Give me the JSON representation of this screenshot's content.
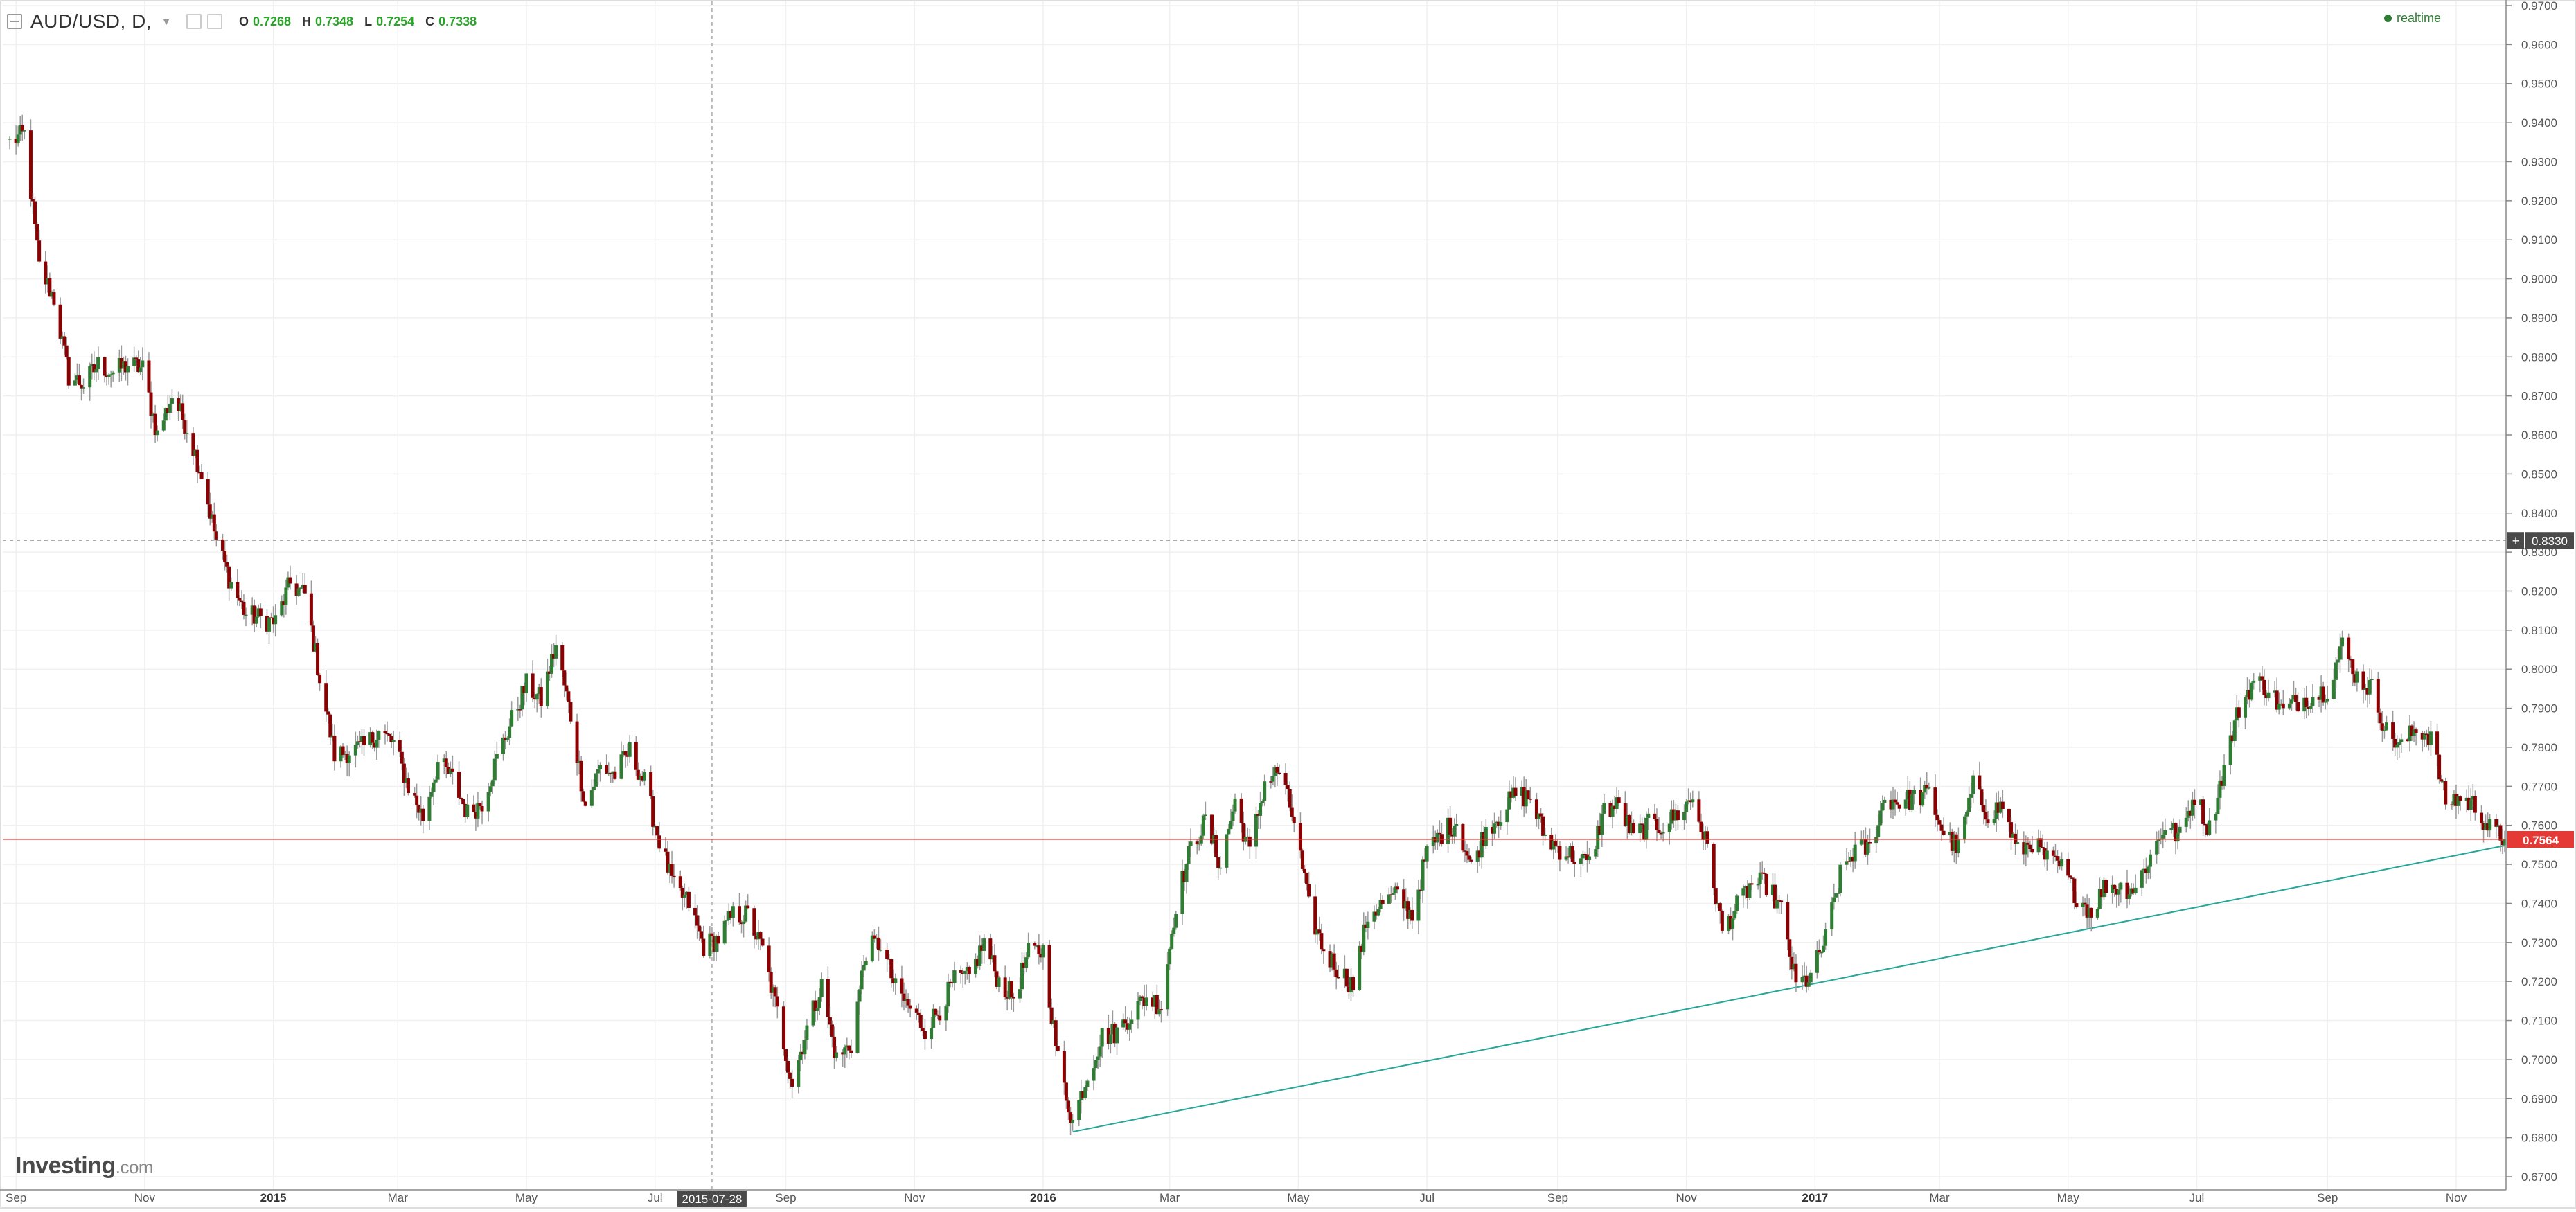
{
  "legend": {
    "symbol": "AUD/USD, D,",
    "o_label": "O",
    "o_value": "0.7268",
    "h_label": "H",
    "h_value": "0.7348",
    "l_label": "L",
    "l_value": "0.7254",
    "c_label": "C",
    "c_value": "0.7338"
  },
  "status": {
    "realtime": "realtime"
  },
  "branding": {
    "name": "Investing",
    "domain": ".com"
  },
  "chart_data": {
    "type": "candlestick",
    "symbol": "AUD/USD",
    "interval": "D",
    "ylim": [
      0.67,
      0.97
    ],
    "y_ticks": [
      "0.6700",
      "0.6800",
      "0.6900",
      "0.7000",
      "0.7100",
      "0.7200",
      "0.7300",
      "0.7400",
      "0.7500",
      "0.7600",
      "0.7700",
      "0.7800",
      "0.7900",
      "0.8000",
      "0.8100",
      "0.8200",
      "0.8300",
      "0.8400",
      "0.8500",
      "0.8600",
      "0.8700",
      "0.8800",
      "0.8900",
      "0.9000",
      "0.9100",
      "0.9200",
      "0.9300",
      "0.9400",
      "0.9500",
      "0.9600",
      "0.9700"
    ],
    "x_labels": [
      {
        "label": "Sep",
        "date": "2014-09-01"
      },
      {
        "label": "Nov",
        "date": "2014-11-01"
      },
      {
        "label": "2015",
        "date": "2015-01-01"
      },
      {
        "label": "Mar",
        "date": "2015-03-01"
      },
      {
        "label": "May",
        "date": "2015-05-01"
      },
      {
        "label": "Jul",
        "date": "2015-07-01"
      },
      {
        "label": "Sep",
        "date": "2015-09-01"
      },
      {
        "label": "Nov",
        "date": "2015-11-01"
      },
      {
        "label": "2016",
        "date": "2016-01-01"
      },
      {
        "label": "Mar",
        "date": "2016-03-01"
      },
      {
        "label": "May",
        "date": "2016-05-01"
      },
      {
        "label": "Jul",
        "date": "2016-07-01"
      },
      {
        "label": "Sep",
        "date": "2016-09-01"
      },
      {
        "label": "Nov",
        "date": "2016-11-01"
      },
      {
        "label": "2017",
        "date": "2017-01-01"
      },
      {
        "label": "Mar",
        "date": "2017-03-01"
      },
      {
        "label": "May",
        "date": "2017-05-01"
      },
      {
        "label": "Jul",
        "date": "2017-07-01"
      },
      {
        "label": "Sep",
        "date": "2017-09-01"
      },
      {
        "label": "Nov",
        "date": "2017-11-01"
      }
    ],
    "x_range": [
      "2014-08-29",
      "2017-11-24"
    ],
    "crosshair": {
      "date": "2015-07-28",
      "date_label": "2015-07-28",
      "price": 0.833,
      "price_label": "0.8330"
    },
    "last_price": {
      "value": 0.7564,
      "label": "0.7564",
      "color": "#e53935"
    },
    "trendline": {
      "start": {
        "date": "2016-01-15",
        "price": 0.6815
      },
      "end": {
        "date": "2017-11-24",
        "price": 0.7548
      },
      "color": "#26a69a"
    },
    "colors": {
      "up": "#2e7d32",
      "down": "#8b0000",
      "wick": "#9a9a9a",
      "grid": "#f0f0f0"
    },
    "grid": true,
    "closes_path": [
      {
        "date": "2014-08-29",
        "close": 0.935
      },
      {
        "date": "2014-09-05",
        "close": 0.937
      },
      {
        "date": "2014-09-12",
        "close": 0.903
      },
      {
        "date": "2014-09-19",
        "close": 0.895
      },
      {
        "date": "2014-09-26",
        "close": 0.875
      },
      {
        "date": "2014-10-03",
        "close": 0.873
      },
      {
        "date": "2014-10-10",
        "close": 0.878
      },
      {
        "date": "2014-10-17",
        "close": 0.876
      },
      {
        "date": "2014-10-24",
        "close": 0.878
      },
      {
        "date": "2014-10-31",
        "close": 0.877
      },
      {
        "date": "2014-11-07",
        "close": 0.86
      },
      {
        "date": "2014-11-14",
        "close": 0.87
      },
      {
        "date": "2014-11-21",
        "close": 0.862
      },
      {
        "date": "2014-11-28",
        "close": 0.85
      },
      {
        "date": "2014-12-05",
        "close": 0.833
      },
      {
        "date": "2014-12-12",
        "close": 0.822
      },
      {
        "date": "2014-12-19",
        "close": 0.814
      },
      {
        "date": "2014-12-26",
        "close": 0.813
      },
      {
        "date": "2015-01-02",
        "close": 0.812
      },
      {
        "date": "2015-01-09",
        "close": 0.822
      },
      {
        "date": "2015-01-16",
        "close": 0.819
      },
      {
        "date": "2015-01-23",
        "close": 0.798
      },
      {
        "date": "2015-01-30",
        "close": 0.778
      },
      {
        "date": "2015-02-06",
        "close": 0.779
      },
      {
        "date": "2015-02-13",
        "close": 0.78
      },
      {
        "date": "2015-02-20",
        "close": 0.784
      },
      {
        "date": "2015-02-27",
        "close": 0.781
      },
      {
        "date": "2015-03-06",
        "close": 0.77
      },
      {
        "date": "2015-03-13",
        "close": 0.762
      },
      {
        "date": "2015-03-20",
        "close": 0.776
      },
      {
        "date": "2015-03-27",
        "close": 0.772
      },
      {
        "date": "2015-04-03",
        "close": 0.763
      },
      {
        "date": "2015-04-10",
        "close": 0.766
      },
      {
        "date": "2015-04-17",
        "close": 0.777
      },
      {
        "date": "2015-04-24",
        "close": 0.787
      },
      {
        "date": "2015-05-01",
        "close": 0.796
      },
      {
        "date": "2015-05-08",
        "close": 0.792
      },
      {
        "date": "2015-05-15",
        "close": 0.806
      },
      {
        "date": "2015-05-22",
        "close": 0.788
      },
      {
        "date": "2015-05-29",
        "close": 0.765
      },
      {
        "date": "2015-06-05",
        "close": 0.775
      },
      {
        "date": "2015-06-12",
        "close": 0.773
      },
      {
        "date": "2015-06-19",
        "close": 0.779
      },
      {
        "date": "2015-06-26",
        "close": 0.771
      },
      {
        "date": "2015-07-03",
        "close": 0.756
      },
      {
        "date": "2015-07-10",
        "close": 0.744
      },
      {
        "date": "2015-07-17",
        "close": 0.74
      },
      {
        "date": "2015-07-24",
        "close": 0.729
      },
      {
        "date": "2015-07-31",
        "close": 0.731
      },
      {
        "date": "2015-08-07",
        "close": 0.737
      },
      {
        "date": "2015-08-14",
        "close": 0.737
      },
      {
        "date": "2015-08-21",
        "close": 0.728
      },
      {
        "date": "2015-08-28",
        "close": 0.712
      },
      {
        "date": "2015-09-04",
        "close": 0.694
      },
      {
        "date": "2015-09-11",
        "close": 0.708
      },
      {
        "date": "2015-09-18",
        "close": 0.719
      },
      {
        "date": "2015-09-25",
        "close": 0.7
      },
      {
        "date": "2015-10-02",
        "close": 0.704
      },
      {
        "date": "2015-10-09",
        "close": 0.728
      },
      {
        "date": "2015-10-16",
        "close": 0.73
      },
      {
        "date": "2015-10-23",
        "close": 0.718
      },
      {
        "date": "2015-10-30",
        "close": 0.713
      },
      {
        "date": "2015-11-06",
        "close": 0.708
      },
      {
        "date": "2015-11-13",
        "close": 0.713
      },
      {
        "date": "2015-11-20",
        "close": 0.72
      },
      {
        "date": "2015-11-27",
        "close": 0.721
      },
      {
        "date": "2015-12-04",
        "close": 0.73
      },
      {
        "date": "2015-12-11",
        "close": 0.72
      },
      {
        "date": "2015-12-18",
        "close": 0.716
      },
      {
        "date": "2015-12-25",
        "close": 0.727
      },
      {
        "date": "2016-01-01",
        "close": 0.728
      },
      {
        "date": "2016-01-08",
        "close": 0.7
      },
      {
        "date": "2016-01-15",
        "close": 0.684
      },
      {
        "date": "2016-01-22",
        "close": 0.696
      },
      {
        "date": "2016-01-29",
        "close": 0.706
      },
      {
        "date": "2016-02-05",
        "close": 0.707
      },
      {
        "date": "2016-02-12",
        "close": 0.712
      },
      {
        "date": "2016-02-19",
        "close": 0.716
      },
      {
        "date": "2016-02-26",
        "close": 0.714
      },
      {
        "date": "2016-03-04",
        "close": 0.74
      },
      {
        "date": "2016-03-11",
        "close": 0.754
      },
      {
        "date": "2016-03-18",
        "close": 0.761
      },
      {
        "date": "2016-03-25",
        "close": 0.75
      },
      {
        "date": "2016-04-01",
        "close": 0.766
      },
      {
        "date": "2016-04-08",
        "close": 0.753
      },
      {
        "date": "2016-04-15",
        "close": 0.771
      },
      {
        "date": "2016-04-22",
        "close": 0.774
      },
      {
        "date": "2016-04-29",
        "close": 0.761
      },
      {
        "date": "2016-05-06",
        "close": 0.739
      },
      {
        "date": "2016-05-13",
        "close": 0.728
      },
      {
        "date": "2016-05-20",
        "close": 0.723
      },
      {
        "date": "2016-05-27",
        "close": 0.719
      },
      {
        "date": "2016-06-03",
        "close": 0.737
      },
      {
        "date": "2016-06-10",
        "close": 0.74
      },
      {
        "date": "2016-06-17",
        "close": 0.742
      },
      {
        "date": "2016-06-24",
        "close": 0.737
      },
      {
        "date": "2016-07-01",
        "close": 0.753
      },
      {
        "date": "2016-07-08",
        "close": 0.758
      },
      {
        "date": "2016-07-15",
        "close": 0.761
      },
      {
        "date": "2016-07-22",
        "close": 0.749
      },
      {
        "date": "2016-07-29",
        "close": 0.759
      },
      {
        "date": "2016-08-05",
        "close": 0.763
      },
      {
        "date": "2016-08-12",
        "close": 0.768
      },
      {
        "date": "2016-08-19",
        "close": 0.767
      },
      {
        "date": "2016-08-26",
        "close": 0.757
      },
      {
        "date": "2016-09-02",
        "close": 0.754
      },
      {
        "date": "2016-09-09",
        "close": 0.752
      },
      {
        "date": "2016-09-16",
        "close": 0.75
      },
      {
        "date": "2016-09-23",
        "close": 0.764
      },
      {
        "date": "2016-09-30",
        "close": 0.765
      },
      {
        "date": "2016-10-07",
        "close": 0.757
      },
      {
        "date": "2016-10-14",
        "close": 0.76
      },
      {
        "date": "2016-10-21",
        "close": 0.76
      },
      {
        "date": "2016-10-28",
        "close": 0.763
      },
      {
        "date": "2016-11-04",
        "close": 0.767
      },
      {
        "date": "2016-11-11",
        "close": 0.754
      },
      {
        "date": "2016-11-18",
        "close": 0.733
      },
      {
        "date": "2016-11-25",
        "close": 0.739
      },
      {
        "date": "2016-12-02",
        "close": 0.745
      },
      {
        "date": "2016-12-09",
        "close": 0.745
      },
      {
        "date": "2016-12-16",
        "close": 0.738
      },
      {
        "date": "2016-12-23",
        "close": 0.719
      },
      {
        "date": "2016-12-30",
        "close": 0.721
      },
      {
        "date": "2017-01-06",
        "close": 0.731
      },
      {
        "date": "2017-01-13",
        "close": 0.747
      },
      {
        "date": "2017-01-20",
        "close": 0.754
      },
      {
        "date": "2017-01-27",
        "close": 0.754
      },
      {
        "date": "2017-02-03",
        "close": 0.767
      },
      {
        "date": "2017-02-10",
        "close": 0.766
      },
      {
        "date": "2017-02-17",
        "close": 0.767
      },
      {
        "date": "2017-02-24",
        "close": 0.768
      },
      {
        "date": "2017-03-03",
        "close": 0.758
      },
      {
        "date": "2017-03-10",
        "close": 0.754
      },
      {
        "date": "2017-03-17",
        "close": 0.77
      },
      {
        "date": "2017-03-24",
        "close": 0.763
      },
      {
        "date": "2017-03-31",
        "close": 0.765
      },
      {
        "date": "2017-04-07",
        "close": 0.753
      },
      {
        "date": "2017-04-14",
        "close": 0.756
      },
      {
        "date": "2017-04-21",
        "close": 0.751
      },
      {
        "date": "2017-04-28",
        "close": 0.749
      },
      {
        "date": "2017-05-05",
        "close": 0.742
      },
      {
        "date": "2017-05-12",
        "close": 0.738
      },
      {
        "date": "2017-05-19",
        "close": 0.745
      },
      {
        "date": "2017-05-26",
        "close": 0.744
      },
      {
        "date": "2017-06-02",
        "close": 0.744
      },
      {
        "date": "2017-06-09",
        "close": 0.752
      },
      {
        "date": "2017-06-16",
        "close": 0.76
      },
      {
        "date": "2017-06-23",
        "close": 0.757
      },
      {
        "date": "2017-06-30",
        "close": 0.768
      },
      {
        "date": "2017-07-07",
        "close": 0.759
      },
      {
        "date": "2017-07-14",
        "close": 0.775
      },
      {
        "date": "2017-07-21",
        "close": 0.79
      },
      {
        "date": "2017-07-28",
        "close": 0.797
      },
      {
        "date": "2017-08-04",
        "close": 0.795
      },
      {
        "date": "2017-08-11",
        "close": 0.789
      },
      {
        "date": "2017-08-18",
        "close": 0.792
      },
      {
        "date": "2017-08-25",
        "close": 0.793
      },
      {
        "date": "2017-09-01",
        "close": 0.795
      },
      {
        "date": "2017-09-08",
        "close": 0.806
      },
      {
        "date": "2017-09-15",
        "close": 0.798
      },
      {
        "date": "2017-09-22",
        "close": 0.795
      },
      {
        "date": "2017-09-29",
        "close": 0.784
      },
      {
        "date": "2017-10-06",
        "close": 0.78
      },
      {
        "date": "2017-10-13",
        "close": 0.785
      },
      {
        "date": "2017-10-20",
        "close": 0.783
      },
      {
        "date": "2017-10-27",
        "close": 0.766
      },
      {
        "date": "2017-11-03",
        "close": 0.767
      },
      {
        "date": "2017-11-10",
        "close": 0.765
      },
      {
        "date": "2017-11-17",
        "close": 0.759
      },
      {
        "date": "2017-11-24",
        "close": 0.7564
      }
    ]
  }
}
